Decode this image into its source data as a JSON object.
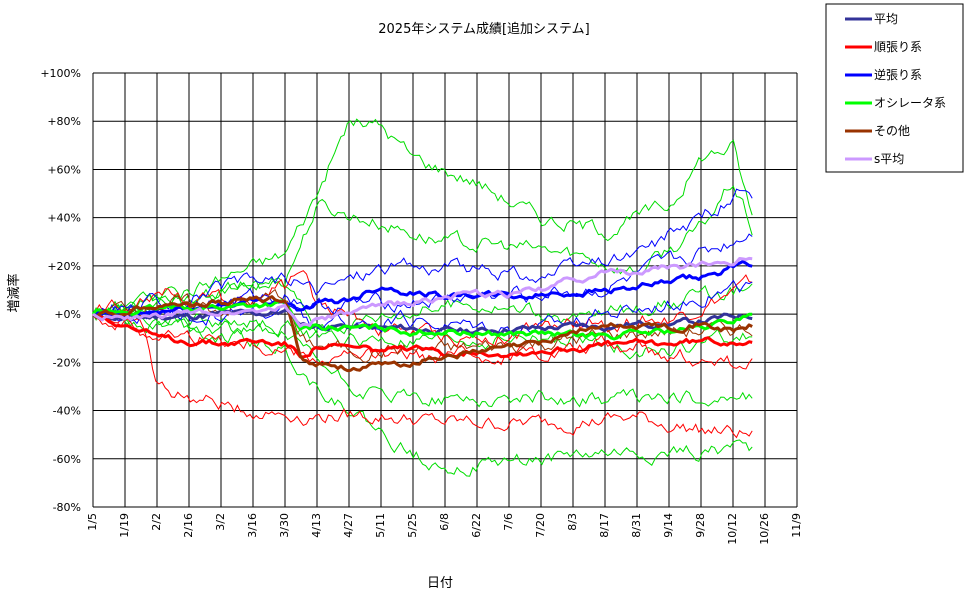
{
  "chart_data": {
    "type": "line",
    "title": "2025年システム成績[追加システム]",
    "xlabel": "日付",
    "ylabel": "増減率",
    "ylim": [
      -80,
      100
    ],
    "yticks": [
      {
        "v": 100,
        "label": "+100%"
      },
      {
        "v": 80,
        "label": "+80%"
      },
      {
        "v": 60,
        "label": "+60%"
      },
      {
        "v": 40,
        "label": "+40%"
      },
      {
        "v": 20,
        "label": "+20%"
      },
      {
        "v": 0,
        "label": "+0%"
      },
      {
        "v": -20,
        "label": "-20%"
      },
      {
        "v": -40,
        "label": "-40%"
      },
      {
        "v": -60,
        "label": "-60%"
      },
      {
        "v": -80,
        "label": "-80%"
      }
    ],
    "xticks": [
      "1/5",
      "1/19",
      "2/2",
      "2/16",
      "3/2",
      "3/16",
      "3/30",
      "4/13",
      "4/27",
      "5/11",
      "5/25",
      "6/8",
      "6/22",
      "7/6",
      "7/20",
      "8/3",
      "8/17",
      "8/31",
      "9/14",
      "9/28",
      "10/12",
      "10/26",
      "11/9"
    ],
    "x_weeks_end": 20.6,
    "grid": true,
    "legend_position": "top-right",
    "series": [
      {
        "name": "平均",
        "color": "#333399",
        "width": 3,
        "points": [
          [
            0,
            0
          ],
          [
            1,
            -2
          ],
          [
            2,
            -1
          ],
          [
            3,
            -1
          ],
          [
            4,
            0
          ],
          [
            5,
            0
          ],
          [
            6,
            1
          ],
          [
            6.5,
            -4
          ],
          [
            7,
            -5
          ],
          [
            8,
            -5
          ],
          [
            9,
            -6
          ],
          [
            10,
            -6
          ],
          [
            11,
            -7
          ],
          [
            12,
            -7
          ],
          [
            13,
            -6
          ],
          [
            14,
            -6
          ],
          [
            15,
            -5
          ],
          [
            16,
            -5
          ],
          [
            17,
            -4
          ],
          [
            18,
            -4
          ],
          [
            19,
            -3
          ],
          [
            20,
            -1
          ],
          [
            20.6,
            0
          ]
        ]
      },
      {
        "name": "順張り系",
        "color": "#ff0000",
        "width": 3,
        "points": [
          [
            0,
            0
          ],
          [
            1,
            -4
          ],
          [
            2,
            -10
          ],
          [
            3,
            -11
          ],
          [
            4,
            -12
          ],
          [
            5,
            -11
          ],
          [
            6,
            -12
          ],
          [
            6.5,
            -17
          ],
          [
            7,
            -13
          ],
          [
            8,
            -14
          ],
          [
            9,
            -15
          ],
          [
            10,
            -15
          ],
          [
            11,
            -16
          ],
          [
            12,
            -15
          ],
          [
            13,
            -16
          ],
          [
            14,
            -15
          ],
          [
            15,
            -14
          ],
          [
            16,
            -13
          ],
          [
            17,
            -12
          ],
          [
            18,
            -12
          ],
          [
            19,
            -11
          ],
          [
            20,
            -11
          ],
          [
            20.6,
            -10
          ]
        ]
      },
      {
        "name": "逆張り系",
        "color": "#0000ff",
        "width": 3,
        "points": [
          [
            0,
            0
          ],
          [
            1,
            -1
          ],
          [
            2,
            1
          ],
          [
            3,
            2
          ],
          [
            4,
            4
          ],
          [
            5,
            5
          ],
          [
            6,
            6
          ],
          [
            6.5,
            1
          ],
          [
            7,
            4
          ],
          [
            8,
            6
          ],
          [
            9,
            12
          ],
          [
            10,
            9
          ],
          [
            11,
            8
          ],
          [
            12,
            8
          ],
          [
            13,
            7
          ],
          [
            14,
            8
          ],
          [
            15,
            9
          ],
          [
            16,
            10
          ],
          [
            17,
            11
          ],
          [
            18,
            13
          ],
          [
            19,
            15
          ],
          [
            20,
            19
          ],
          [
            20.6,
            21
          ]
        ]
      },
      {
        "name": "オシレータ系",
        "color": "#00ff00",
        "width": 3,
        "points": [
          [
            0,
            0
          ],
          [
            1,
            1
          ],
          [
            2,
            2
          ],
          [
            3,
            3
          ],
          [
            4,
            3
          ],
          [
            5,
            4
          ],
          [
            6,
            4
          ],
          [
            6.5,
            -7
          ],
          [
            7,
            -5
          ],
          [
            8,
            -6
          ],
          [
            9,
            -6
          ],
          [
            10,
            -7
          ],
          [
            11,
            -7
          ],
          [
            12,
            -8
          ],
          [
            13,
            -8
          ],
          [
            14,
            -8
          ],
          [
            15,
            -9
          ],
          [
            16,
            -9
          ],
          [
            17,
            -8
          ],
          [
            18,
            -7
          ],
          [
            19,
            -6
          ],
          [
            20,
            -3
          ],
          [
            20.6,
            1
          ]
        ]
      },
      {
        "name": "その他",
        "color": "#993300",
        "width": 3,
        "points": [
          [
            0,
            0
          ],
          [
            1,
            1
          ],
          [
            2,
            5
          ],
          [
            3,
            4
          ],
          [
            4,
            5
          ],
          [
            5,
            6
          ],
          [
            6,
            6
          ],
          [
            6.5,
            -18
          ],
          [
            7,
            -20
          ],
          [
            8,
            -22
          ],
          [
            9,
            -22
          ],
          [
            10,
            -20
          ],
          [
            11,
            -17
          ],
          [
            12,
            -16
          ],
          [
            13,
            -14
          ],
          [
            14,
            -12
          ],
          [
            15,
            -7
          ],
          [
            16,
            -5
          ],
          [
            17,
            -5
          ],
          [
            18,
            -5
          ],
          [
            19,
            -4
          ],
          [
            20,
            -7
          ],
          [
            20.6,
            -5
          ]
        ]
      },
      {
        "name": "s平均",
        "color": "#cc99ff",
        "width": 3,
        "points": [
          [
            0,
            0
          ],
          [
            1,
            -2
          ],
          [
            2,
            -1
          ],
          [
            3,
            0
          ],
          [
            4,
            1
          ],
          [
            5,
            2
          ],
          [
            6,
            3
          ],
          [
            6.5,
            -4
          ],
          [
            7,
            -2
          ],
          [
            8,
            0
          ],
          [
            9,
            3
          ],
          [
            10,
            5
          ],
          [
            11,
            7
          ],
          [
            12,
            8
          ],
          [
            13,
            8
          ],
          [
            14,
            10
          ],
          [
            15,
            14
          ],
          [
            16,
            17
          ],
          [
            17,
            18
          ],
          [
            18,
            19
          ],
          [
            19,
            20
          ],
          [
            20,
            22
          ],
          [
            20.6,
            24
          ]
        ]
      }
    ]
  }
}
